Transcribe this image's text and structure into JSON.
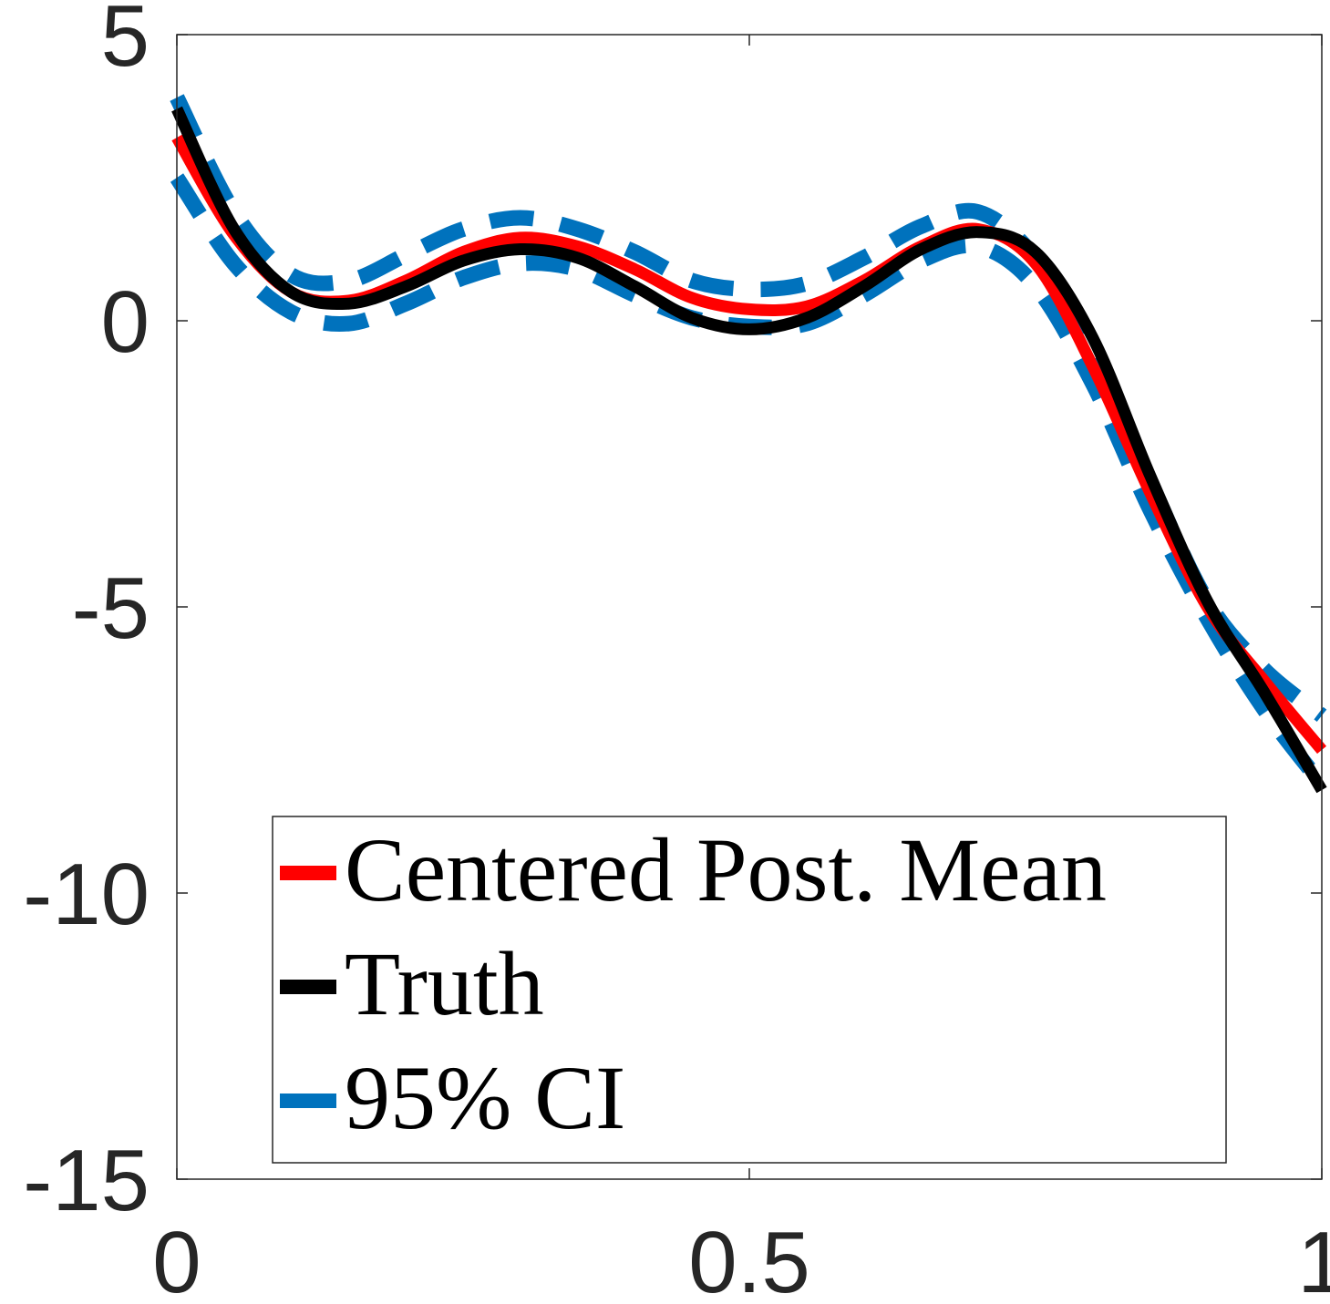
{
  "chart_data": {
    "type": "line",
    "xlim": [
      0,
      1
    ],
    "ylim": [
      -15,
      5
    ],
    "x_ticks": [
      0,
      0.5,
      1
    ],
    "x_tick_labels": [
      "0",
      "0.5",
      "1"
    ],
    "y_ticks": [
      5,
      0,
      -5,
      -10,
      -15
    ],
    "y_tick_labels": [
      "5",
      "0",
      "-5",
      "-10",
      "-15"
    ],
    "grid": false,
    "legend_position": "bottom",
    "series": [
      {
        "name": "Centered Post. Mean",
        "color": "#ff0000",
        "style": "solid",
        "x": [
          0,
          0.05,
          0.1,
          0.15,
          0.2,
          0.25,
          0.3,
          0.35,
          0.4,
          0.45,
          0.5,
          0.55,
          0.6,
          0.65,
          0.7,
          0.75,
          0.8,
          0.85,
          0.9,
          0.95,
          1
        ],
        "y": [
          3.2,
          1.5,
          0.5,
          0.35,
          0.7,
          1.2,
          1.45,
          1.3,
          0.9,
          0.4,
          0.2,
          0.25,
          0.7,
          1.3,
          1.6,
          1.0,
          -0.8,
          -3.0,
          -5.0,
          -6.3,
          -7.5
        ]
      },
      {
        "name": "Truth",
        "color": "#000000",
        "style": "solid",
        "x": [
          0,
          0.05,
          0.1,
          0.15,
          0.2,
          0.25,
          0.3,
          0.35,
          0.4,
          0.45,
          0.5,
          0.55,
          0.6,
          0.65,
          0.7,
          0.75,
          0.8,
          0.85,
          0.9,
          0.95,
          1
        ],
        "y": [
          3.7,
          1.6,
          0.5,
          0.3,
          0.6,
          1.05,
          1.25,
          1.1,
          0.6,
          0.05,
          -0.15,
          0.05,
          0.6,
          1.25,
          1.55,
          1.2,
          -0.3,
          -2.7,
          -4.9,
          -6.5,
          -8.2
        ]
      },
      {
        "name": "95% CI",
        "color": "#0072bd",
        "style": "dashed",
        "x": [
          0,
          0.05,
          0.1,
          0.15,
          0.2,
          0.25,
          0.3,
          0.35,
          0.4,
          0.45,
          0.5,
          0.55,
          0.6,
          0.65,
          0.7,
          0.75,
          0.8,
          0.85,
          0.9,
          0.95,
          1
        ],
        "y": [
          3.9,
          1.9,
          0.8,
          0.7,
          1.15,
          1.6,
          1.8,
          1.6,
          1.2,
          0.7,
          0.55,
          0.65,
          1.1,
          1.65,
          1.9,
          1.1,
          -0.5,
          -2.8,
          -4.9,
          -6.1,
          -6.9
        ]
      },
      {
        "name": "",
        "color": "#0072bd",
        "style": "dashed",
        "x": [
          0,
          0.05,
          0.1,
          0.15,
          0.2,
          0.25,
          0.3,
          0.35,
          0.4,
          0.45,
          0.5,
          0.55,
          0.6,
          0.65,
          0.7,
          0.75,
          0.8,
          0.85,
          0.9,
          0.95,
          1
        ],
        "y": [
          2.5,
          1.0,
          0.15,
          -0.05,
          0.3,
          0.75,
          1.0,
          0.9,
          0.45,
          0.05,
          -0.1,
          -0.05,
          0.45,
          1.05,
          1.3,
          0.6,
          -1.1,
          -3.3,
          -5.2,
          -6.8,
          -8.1
        ]
      }
    ]
  }
}
